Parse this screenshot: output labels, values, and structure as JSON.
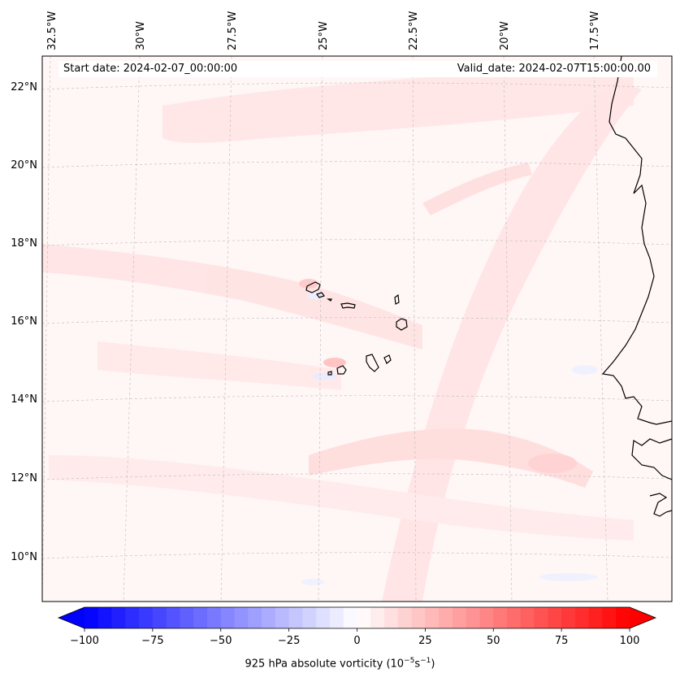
{
  "map": {
    "lon_ticks": [
      "32.5°W",
      "30°W",
      "27.5°W",
      "25°W",
      "22.5°W",
      "20°W",
      "17.5°W"
    ],
    "lat_ticks": [
      "22°N",
      "20°N",
      "18°N",
      "16°N",
      "14°N",
      "12°N",
      "10°N"
    ],
    "start_date": "Start date: 2024-02-07_00:00:00",
    "valid_date": "Valid_date: 2024-02-07T15:00:00.00"
  },
  "colorbar": {
    "ticks": [
      "−100",
      "−75",
      "−50",
      "−25",
      "0",
      "25",
      "50",
      "75",
      "100"
    ],
    "min": -100,
    "max": 100,
    "step": 5,
    "label_prefix": "925 hPa absolute vorticity (10",
    "label_exp1": "−5",
    "label_mid": "s",
    "label_exp2": "−1",
    "label_suffix": ")"
  },
  "colors": {
    "negative_max": "#0000ff",
    "positive_max": "#ff0000",
    "background": "#fff6f6"
  }
}
